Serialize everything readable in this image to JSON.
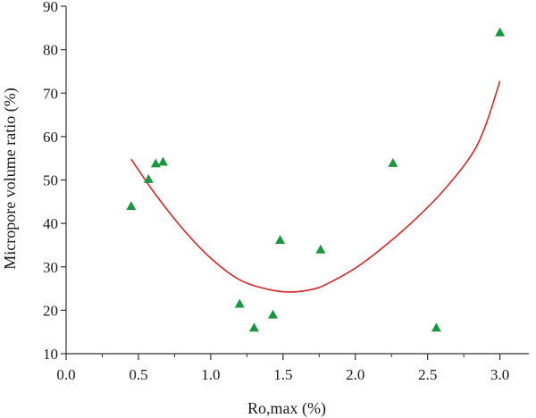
{
  "chart_data": {
    "type": "scatter",
    "title": "",
    "xlabel": "Ro,max (%)",
    "ylabel": "Micropore volume ratio (%)",
    "xlim": [
      0.0,
      3.2
    ],
    "ylim": [
      10,
      90
    ],
    "x_ticks": [
      "0.0",
      "0.5",
      "1.0",
      "1.5",
      "2.0",
      "2.5",
      "3.0"
    ],
    "x_tick_values": [
      0.0,
      0.5,
      1.0,
      1.5,
      2.0,
      2.5,
      3.0
    ],
    "x_minor_tick_values": [
      0.25,
      0.75,
      1.25,
      1.75,
      2.25,
      2.75
    ],
    "y_ticks": [
      "10",
      "20",
      "30",
      "40",
      "50",
      "60",
      "70",
      "80",
      "90"
    ],
    "y_tick_values": [
      10,
      20,
      30,
      40,
      50,
      60,
      70,
      80,
      90
    ],
    "grid": false,
    "series": [
      {
        "marker": "triangle",
        "color": "#1a9641",
        "points": [
          {
            "x": 0.45,
            "y": 44
          },
          {
            "x": 0.57,
            "y": 50.2
          },
          {
            "x": 0.62,
            "y": 53.8
          },
          {
            "x": 0.67,
            "y": 54.2
          },
          {
            "x": 1.2,
            "y": 21.5
          },
          {
            "x": 1.3,
            "y": 16
          },
          {
            "x": 1.43,
            "y": 19
          },
          {
            "x": 1.48,
            "y": 36.2
          },
          {
            "x": 1.76,
            "y": 34
          },
          {
            "x": 2.26,
            "y": 53.9
          },
          {
            "x": 2.56,
            "y": 16
          },
          {
            "x": 3.0,
            "y": 84
          }
        ]
      },
      {
        "type": "line",
        "color": "#d62728",
        "points": [
          {
            "x": 0.45,
            "y": 54.8
          },
          {
            "x": 0.6,
            "y": 47.5
          },
          {
            "x": 0.8,
            "y": 39.0
          },
          {
            "x": 1.0,
            "y": 32.0
          },
          {
            "x": 1.2,
            "y": 27.0
          },
          {
            "x": 1.4,
            "y": 24.8
          },
          {
            "x": 1.55,
            "y": 24.2
          },
          {
            "x": 1.7,
            "y": 24.8
          },
          {
            "x": 1.8,
            "y": 26.0
          },
          {
            "x": 2.0,
            "y": 29.7
          },
          {
            "x": 2.2,
            "y": 34.7
          },
          {
            "x": 2.4,
            "y": 40.5
          },
          {
            "x": 2.6,
            "y": 47.2
          },
          {
            "x": 2.8,
            "y": 55.6
          },
          {
            "x": 2.9,
            "y": 62.5
          },
          {
            "x": 3.0,
            "y": 72.8
          }
        ]
      }
    ]
  }
}
